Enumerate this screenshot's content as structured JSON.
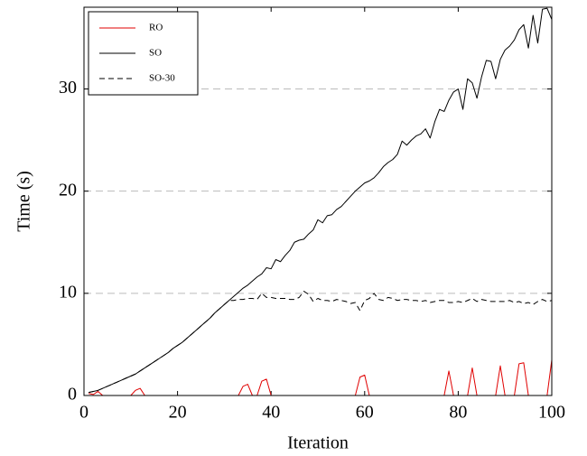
{
  "chart_data": {
    "type": "line",
    "x_label": "Iteration",
    "y_label": "Time (s)",
    "xlim": [
      0,
      100
    ],
    "ylim": [
      0,
      38
    ],
    "xticks": [
      0,
      20,
      40,
      60,
      80,
      100
    ],
    "yticks": [
      0,
      10,
      20,
      30
    ],
    "grid": true,
    "legend": "upper-left",
    "x": [
      1,
      2,
      3,
      4,
      5,
      6,
      7,
      8,
      9,
      10,
      11,
      12,
      13,
      14,
      15,
      16,
      17,
      18,
      19,
      20,
      21,
      22,
      23,
      24,
      25,
      26,
      27,
      28,
      29,
      30,
      31,
      32,
      33,
      34,
      35,
      36,
      37,
      38,
      39,
      40,
      41,
      42,
      43,
      44,
      45,
      46,
      47,
      48,
      49,
      50,
      51,
      52,
      53,
      54,
      55,
      56,
      57,
      58,
      59,
      60,
      61,
      62,
      63,
      64,
      65,
      66,
      67,
      68,
      69,
      70,
      71,
      72,
      73,
      74,
      75,
      76,
      77,
      78,
      79,
      80,
      81,
      82,
      83,
      84,
      85,
      86,
      87,
      88,
      89,
      90,
      91,
      92,
      93,
      94,
      95,
      96,
      97,
      98,
      99,
      100
    ],
    "series": [
      {
        "name": "RO",
        "color": "#e00000",
        "dash": false,
        "values": [
          0.2,
          0.1,
          0.4,
          0,
          0,
          0,
          0,
          0,
          0,
          0,
          0.5,
          0.7,
          0,
          0,
          0,
          0,
          0,
          0,
          0,
          0,
          0,
          0,
          0,
          0,
          0,
          0,
          0,
          0,
          0,
          0,
          0,
          0,
          0,
          0.9,
          1.1,
          0,
          0,
          1.4,
          1.6,
          0,
          0,
          0,
          0,
          0,
          0,
          0,
          0,
          0,
          0,
          0,
          0,
          0,
          0,
          0,
          0,
          0,
          0,
          0,
          1.8,
          2.0,
          0,
          0,
          0,
          0,
          0,
          0,
          0,
          0,
          0,
          0,
          0,
          0,
          0,
          0,
          0,
          0,
          0,
          2.4,
          0,
          0,
          0,
          0,
          2.7,
          0,
          0,
          0,
          0,
          0,
          2.9,
          0,
          0,
          0,
          3.1,
          3.2,
          0,
          0,
          0,
          0,
          0,
          3.5
        ]
      },
      {
        "name": "SO",
        "color": "#000000",
        "dash": false,
        "values": [
          0.3,
          0.4,
          0.5,
          0.7,
          0.9,
          1.1,
          1.3,
          1.5,
          1.7,
          1.9,
          2.1,
          2.4,
          2.7,
          3.0,
          3.3,
          3.6,
          3.9,
          4.2,
          4.6,
          4.9,
          5.2,
          5.6,
          6.0,
          6.4,
          6.8,
          7.2,
          7.6,
          8.1,
          8.5,
          8.9,
          9.3,
          9.7,
          10.1,
          10.5,
          10.8,
          11.2,
          11.6,
          11.9,
          12.5,
          12.4,
          13.3,
          13.1,
          13.7,
          14.2,
          15.0,
          15.2,
          15.3,
          15.8,
          16.2,
          17.2,
          16.9,
          17.6,
          17.7,
          18.2,
          18.5,
          19.0,
          19.5,
          20.0,
          20.4,
          20.8,
          21.0,
          21.3,
          21.8,
          22.4,
          22.8,
          23.1,
          23.6,
          24.9,
          24.5,
          25.0,
          25.4,
          25.6,
          26.1,
          25.2,
          26.8,
          28.0,
          27.8,
          28.9,
          29.7,
          30.0,
          28.0,
          31.0,
          30.6,
          29.1,
          31.2,
          32.8,
          32.7,
          31.0,
          32.9,
          33.8,
          34.2,
          34.8,
          35.8,
          36.3,
          34.0,
          37.2,
          34.5,
          37.8,
          37.9,
          36.8
        ]
      },
      {
        "name": "SO-30",
        "color": "#000000",
        "dash": true,
        "values": [
          0.3,
          0.4,
          0.5,
          0.7,
          0.9,
          1.1,
          1.3,
          1.5,
          1.7,
          1.9,
          2.1,
          2.4,
          2.7,
          3.0,
          3.3,
          3.6,
          3.9,
          4.2,
          4.6,
          4.9,
          5.2,
          5.6,
          6.0,
          6.4,
          6.8,
          7.2,
          7.6,
          8.1,
          8.5,
          8.9,
          9.3,
          9.3,
          9.4,
          9.4,
          9.5,
          9.5,
          9.4,
          10.0,
          9.6,
          9.6,
          9.5,
          9.5,
          9.5,
          9.4,
          9.4,
          9.6,
          10.2,
          9.9,
          9.2,
          9.5,
          9.3,
          9.3,
          9.2,
          9.4,
          9.3,
          9.2,
          9.0,
          9.1,
          8.3,
          9.3,
          9.5,
          10.0,
          9.4,
          9.3,
          9.6,
          9.5,
          9.3,
          9.4,
          9.4,
          9.3,
          9.3,
          9.2,
          9.3,
          9.1,
          9.2,
          9.3,
          9.3,
          9.1,
          9.1,
          9.2,
          9.1,
          9.3,
          9.5,
          9.2,
          9.4,
          9.3,
          9.2,
          9.2,
          9.2,
          9.2,
          9.3,
          9.1,
          9.2,
          9.0,
          9.1,
          8.9,
          9.2,
          9.4,
          9.2,
          9.3
        ]
      }
    ]
  }
}
